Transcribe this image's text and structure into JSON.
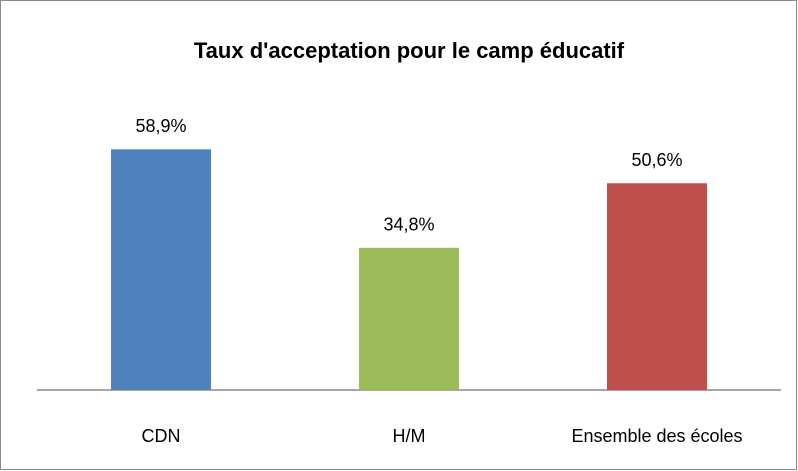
{
  "chart_data": {
    "type": "bar",
    "title": "Taux d'acceptation pour le camp éducatif",
    "categories": [
      "CDN",
      "H/M",
      "Ensemble des écoles"
    ],
    "values": [
      58.9,
      34.8,
      50.6
    ],
    "value_labels": [
      "58,9%",
      "34,8%",
      "50,6%"
    ],
    "colors": [
      "#4f81bd",
      "#9bbb59",
      "#c0504d"
    ],
    "ylim": [
      0,
      70
    ]
  }
}
